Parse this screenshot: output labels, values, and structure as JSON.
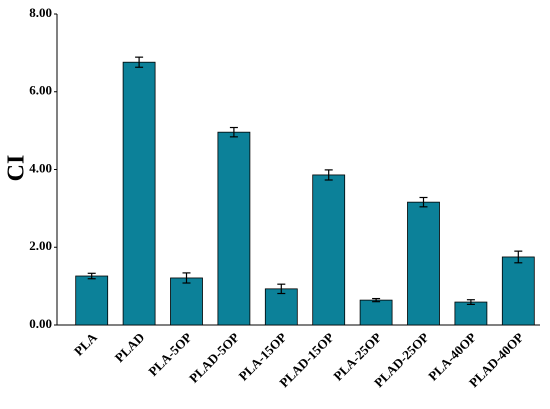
{
  "chart_data": {
    "type": "bar",
    "y_label": "CI",
    "categories": [
      "PLA",
      "PLAD",
      "PLA-5OP",
      "PLAD-5OP",
      "PLA-15OP",
      "PLAD-15OP",
      "PLA-25OP",
      "PLAD-25OP",
      "PLA-40OP",
      "PLAD-40OP"
    ],
    "values": [
      1.26,
      6.76,
      1.21,
      4.96,
      0.93,
      3.86,
      0.64,
      3.16,
      0.59,
      1.75
    ],
    "errors": [
      0.07,
      0.13,
      0.13,
      0.12,
      0.12,
      0.13,
      0.04,
      0.12,
      0.06,
      0.15
    ],
    "color": "#0c8199",
    "ylim": [
      0,
      8
    ],
    "yticks": [
      {
        "value": 0,
        "label": "0.00"
      },
      {
        "value": 2,
        "label": "2.00"
      },
      {
        "value": 4,
        "label": "4.00"
      },
      {
        "value": 6,
        "label": "6.00"
      },
      {
        "value": 8,
        "label": "8.00"
      }
    ]
  }
}
